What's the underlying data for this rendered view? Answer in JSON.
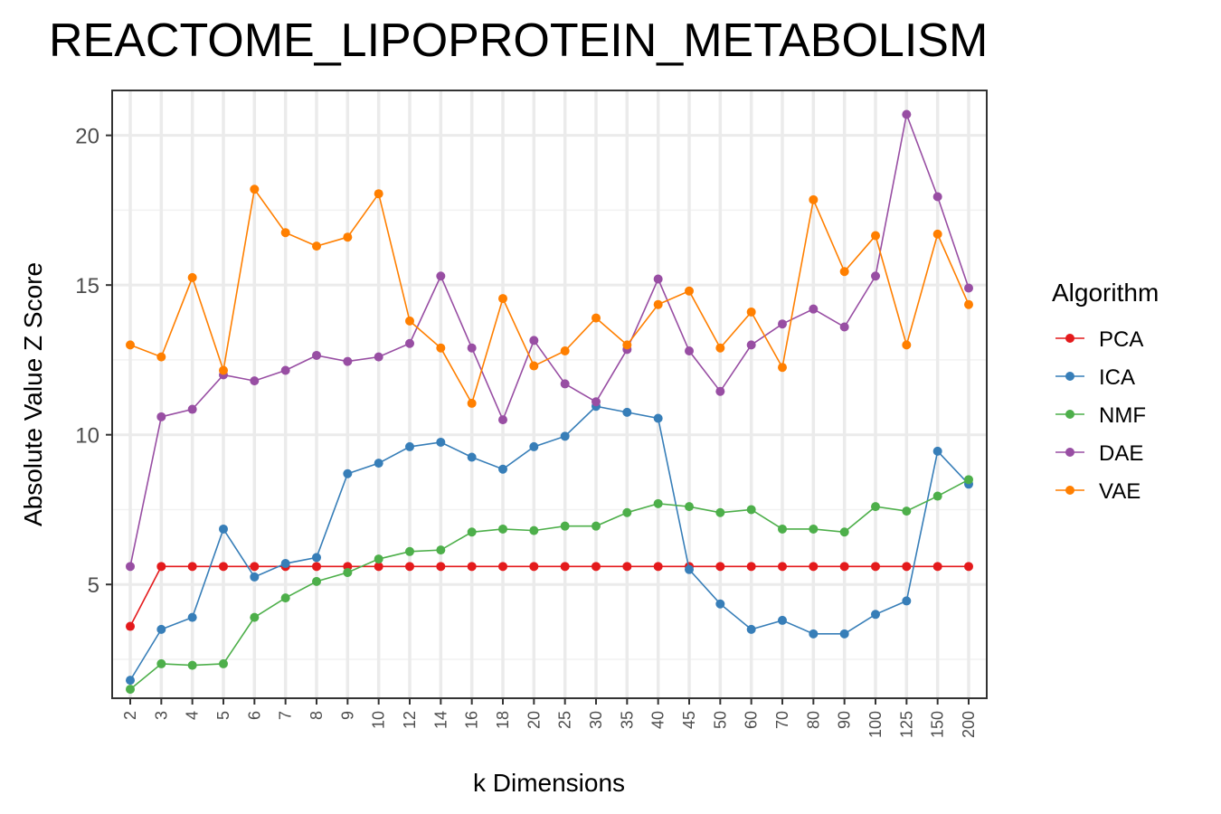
{
  "chart_data": {
    "type": "line",
    "title": "REACTOME_LIPOPROTEIN_METABOLISM",
    "xlabel": "k Dimensions",
    "ylabel": "Absolute Value Z Score",
    "categories": [
      "2",
      "3",
      "4",
      "5",
      "6",
      "7",
      "8",
      "9",
      "10",
      "12",
      "14",
      "16",
      "18",
      "20",
      "25",
      "30",
      "35",
      "40",
      "45",
      "50",
      "60",
      "70",
      "80",
      "90",
      "100",
      "125",
      "150",
      "200"
    ],
    "y_ticks": [
      5,
      10,
      15,
      20
    ],
    "ylim": [
      1.2,
      21.5
    ],
    "grid": true,
    "legend": {
      "title": "Algorithm",
      "placement": "right"
    },
    "series": [
      {
        "name": "PCA",
        "color": "#e41a1c",
        "values": [
          3.6,
          5.6,
          5.6,
          5.6,
          5.6,
          5.6,
          5.6,
          5.6,
          5.6,
          5.6,
          5.6,
          5.6,
          5.6,
          5.6,
          5.6,
          5.6,
          5.6,
          5.6,
          5.6,
          5.6,
          5.6,
          5.6,
          5.6,
          5.6,
          5.6,
          5.6,
          5.6,
          5.6
        ]
      },
      {
        "name": "ICA",
        "color": "#377eb8",
        "values": [
          1.8,
          3.5,
          3.9,
          6.85,
          5.25,
          5.7,
          5.9,
          8.7,
          9.05,
          9.6,
          9.75,
          9.25,
          8.85,
          9.6,
          9.95,
          10.95,
          10.75,
          10.55,
          5.5,
          4.35,
          3.5,
          3.8,
          3.35,
          3.35,
          4.0,
          4.45,
          9.45,
          8.35
        ]
      },
      {
        "name": "NMF",
        "color": "#4daf4a",
        "values": [
          1.5,
          2.35,
          2.3,
          2.35,
          3.9,
          4.55,
          5.1,
          5.4,
          5.85,
          6.1,
          6.15,
          6.75,
          6.85,
          6.8,
          6.95,
          6.95,
          7.4,
          7.7,
          7.6,
          7.4,
          7.5,
          6.85,
          6.85,
          6.75,
          7.6,
          7.45,
          7.95,
          8.5
        ]
      },
      {
        "name": "DAE",
        "color": "#984ea3",
        "values": [
          5.6,
          10.6,
          10.85,
          12.0,
          11.8,
          12.15,
          12.65,
          12.45,
          12.6,
          13.05,
          15.3,
          12.9,
          10.5,
          13.15,
          11.7,
          11.1,
          12.85,
          15.2,
          12.8,
          11.45,
          13.0,
          13.7,
          14.2,
          13.6,
          15.3,
          20.7,
          17.95,
          14.9
        ]
      },
      {
        "name": "VAE",
        "color": "#ff7f00",
        "values": [
          13.0,
          12.6,
          15.25,
          12.15,
          18.2,
          16.75,
          16.3,
          16.6,
          18.05,
          13.8,
          12.9,
          11.05,
          14.55,
          12.3,
          12.8,
          13.9,
          13.0,
          14.35,
          14.8,
          12.9,
          14.1,
          12.25,
          17.85,
          15.45,
          16.65,
          13.0,
          16.7,
          14.35
        ]
      }
    ]
  }
}
